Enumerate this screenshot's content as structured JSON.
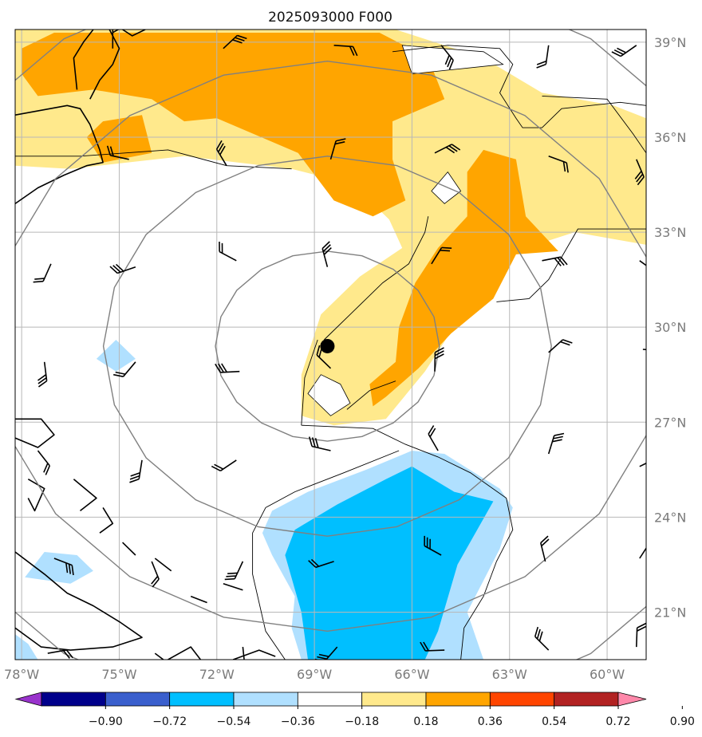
{
  "chart_data": {
    "type": "map",
    "title": "2025093000 F000",
    "projection": "equirectangular",
    "extent": {
      "lon_min": -78.2,
      "lon_max": -58.8,
      "lat_min": 19.5,
      "lat_max": 39.4
    },
    "x_ticks": [
      {
        "lon": -78,
        "label": "78°W"
      },
      {
        "lon": -75,
        "label": "75°W"
      },
      {
        "lon": -72,
        "label": "72°W"
      },
      {
        "lon": -69,
        "label": "69°W"
      },
      {
        "lon": -66,
        "label": "66°W"
      },
      {
        "lon": -63,
        "label": "63°W"
      },
      {
        "lon": -60,
        "label": "60°W"
      }
    ],
    "y_ticks": [
      {
        "lat": 39,
        "label": "39°N"
      },
      {
        "lat": 36,
        "label": "36°N"
      },
      {
        "lat": 33,
        "label": "33°N"
      },
      {
        "lat": 30,
        "label": "30°N"
      },
      {
        "lat": 27,
        "label": "27°N"
      },
      {
        "lat": 24,
        "label": "24°N"
      },
      {
        "lat": 21,
        "label": "21°N"
      }
    ],
    "storm_center": {
      "lon": -68.6,
      "lat": 29.4
    },
    "range_rings_lat_deg": [
      3,
      6,
      9,
      12
    ],
    "colorbar": {
      "levels": [
        -0.9,
        -0.72,
        -0.54,
        -0.36,
        -0.18,
        0.18,
        0.36,
        0.54,
        0.72,
        0.9
      ],
      "labels": [
        "−0.90",
        "−0.72",
        "−0.54",
        "−0.36",
        "−0.18",
        "0.18",
        "0.36",
        "0.54",
        "0.72",
        "0.90"
      ],
      "colors": [
        "#9933cc",
        "#00008b",
        "#3a5fcd",
        "#00bfff",
        "#b0e0ff",
        "#ffffff",
        "#ffe98c",
        "#ffa500",
        "#ff4500",
        "#b22222",
        "#ff88aa"
      ],
      "extend": "both"
    },
    "shaded_regions": [
      {
        "level": 0.18,
        "color": "#ffe98c",
        "polygon": [
          [
            -78.2,
            39.4
          ],
          [
            -66.5,
            39.4
          ],
          [
            -63.8,
            38.5
          ],
          [
            -62,
            37.4
          ],
          [
            -59.8,
            37
          ],
          [
            -58.8,
            36.6
          ],
          [
            -58.8,
            32.6
          ],
          [
            -61,
            33
          ],
          [
            -62.8,
            32.4
          ],
          [
            -64.2,
            30.8
          ],
          [
            -65.6,
            28.6
          ],
          [
            -66.8,
            27.1
          ],
          [
            -68.4,
            26.9
          ],
          [
            -69.4,
            27.2
          ],
          [
            -69.4,
            28.5
          ],
          [
            -68.8,
            30.4
          ],
          [
            -67.6,
            31.6
          ],
          [
            -66.3,
            32.5
          ],
          [
            -66.7,
            33.4
          ],
          [
            -67.8,
            34.5
          ],
          [
            -69.7,
            35
          ],
          [
            -73,
            35.4
          ],
          [
            -76.5,
            35
          ],
          [
            -78.2,
            35.1
          ]
        ]
      },
      {
        "level": 0.36,
        "color": "#ffa500",
        "polygon": [
          [
            -78,
            38.8
          ],
          [
            -77,
            39.3
          ],
          [
            -67,
            39.3
          ],
          [
            -65.5,
            38.5
          ],
          [
            -65,
            37.2
          ],
          [
            -66.6,
            36.5
          ],
          [
            -66.6,
            35.3
          ],
          [
            -66.2,
            34
          ],
          [
            -67.2,
            33.5
          ],
          [
            -68.4,
            34
          ],
          [
            -69.5,
            35.5
          ],
          [
            -72,
            36.6
          ],
          [
            -73,
            36.5
          ],
          [
            -74,
            37.2
          ],
          [
            -75.8,
            37.5
          ],
          [
            -77.5,
            37.3
          ],
          [
            -78,
            38
          ]
        ]
      },
      {
        "level": 0.36,
        "color": "#ffa500",
        "polygon": [
          [
            -75.5,
            36.5
          ],
          [
            -74.3,
            36.7
          ],
          [
            -74,
            35.5
          ],
          [
            -75.5,
            35.2
          ],
          [
            -76,
            36
          ]
        ]
      },
      {
        "level": 0.36,
        "color": "#ffa500",
        "polygon": [
          [
            -63.8,
            35.6
          ],
          [
            -62.8,
            35.3
          ],
          [
            -62.5,
            33.5
          ],
          [
            -61.5,
            32.4
          ],
          [
            -62.8,
            32.3
          ],
          [
            -63.5,
            30.9
          ],
          [
            -64.8,
            29.8
          ],
          [
            -65.8,
            28.7
          ],
          [
            -66.8,
            27.8
          ],
          [
            -67.2,
            27.5
          ],
          [
            -67.3,
            28.2
          ],
          [
            -66.5,
            28.9
          ],
          [
            -66.4,
            30
          ],
          [
            -65.9,
            31.4
          ],
          [
            -65.2,
            32.5
          ],
          [
            -64.3,
            33.5
          ],
          [
            -64.3,
            34.9
          ]
        ]
      },
      {
        "level": -0.18,
        "color": "#b0e0ff",
        "polygon": [
          [
            -69.2,
            24.8
          ],
          [
            -67.4,
            25.5
          ],
          [
            -66,
            26.1
          ],
          [
            -65,
            26
          ],
          [
            -63.3,
            24.9
          ],
          [
            -62.9,
            24.3
          ],
          [
            -63.3,
            23
          ],
          [
            -64.3,
            21
          ],
          [
            -63.8,
            19.5
          ],
          [
            -69.4,
            19.5
          ],
          [
            -69.7,
            20.5
          ],
          [
            -69.6,
            21.5
          ],
          [
            -70.3,
            22.8
          ],
          [
            -70.6,
            23.5
          ],
          [
            -70.3,
            24.2
          ]
        ]
      },
      {
        "level": -0.36,
        "color": "#00bfff",
        "polygon": [
          [
            -68.3,
            24.4
          ],
          [
            -66.8,
            25.2
          ],
          [
            -66,
            25.6
          ],
          [
            -64.7,
            24.8
          ],
          [
            -63.5,
            24.5
          ],
          [
            -64.6,
            22.5
          ],
          [
            -65.2,
            20.4
          ],
          [
            -65.6,
            19.5
          ],
          [
            -69.2,
            19.5
          ],
          [
            -69.4,
            21
          ],
          [
            -69.9,
            22.8
          ],
          [
            -69.6,
            23.6
          ]
        ]
      },
      {
        "level": -0.18,
        "color": "#b0e0ff",
        "polygon": [
          [
            -75.1,
            29.6
          ],
          [
            -74.5,
            29
          ],
          [
            -75.1,
            28.6
          ],
          [
            -75.7,
            29
          ]
        ]
      },
      {
        "level": -0.18,
        "color": "#b0e0ff",
        "polygon": [
          [
            -77.3,
            22.9
          ],
          [
            -76.3,
            22.8
          ],
          [
            -75.8,
            22.3
          ],
          [
            -76.5,
            21.9
          ],
          [
            -77.9,
            22.1
          ]
        ]
      },
      {
        "level": -0.18,
        "color": "#b0e0ff",
        "polygon": [
          [
            -78.2,
            20.3
          ],
          [
            -77.8,
            20
          ],
          [
            -77.5,
            19.5
          ],
          [
            -78.2,
            19.5
          ]
        ]
      }
    ],
    "clear_regions": [
      {
        "polygon": [
          [
            -68.8,
            28.5
          ],
          [
            -68.2,
            28.2
          ],
          [
            -67.9,
            27.6
          ],
          [
            -68.5,
            27.2
          ],
          [
            -69.2,
            27.9
          ]
        ]
      },
      {
        "polygon": [
          [
            -64.9,
            34.9
          ],
          [
            -64.5,
            34.3
          ],
          [
            -65,
            33.9
          ],
          [
            -65.4,
            34.3
          ]
        ]
      },
      {
        "polygon": [
          [
            -66.3,
            38.9
          ],
          [
            -63.8,
            38.7
          ],
          [
            -63.2,
            38.3
          ],
          [
            -66,
            38
          ]
        ]
      }
    ],
    "coastlines": [
      [
        [
          -78.2,
          36.7
        ],
        [
          -76.6,
          37
        ],
        [
          -76.2,
          36.9
        ],
        [
          -75.9,
          36.4
        ],
        [
          -75.6,
          35.6
        ],
        [
          -75.5,
          35.2
        ],
        [
          -76,
          35.1
        ],
        [
          -76.7,
          34.8
        ],
        [
          -77.5,
          34.4
        ],
        [
          -78.2,
          33.9
        ]
      ],
      [
        [
          -76.3,
          37.5
        ],
        [
          -76.4,
          38.5
        ],
        [
          -76.1,
          39
        ],
        [
          -75.8,
          39.4
        ]
      ],
      [
        [
          -75.9,
          37.2
        ],
        [
          -75.6,
          37.8
        ],
        [
          -75.2,
          38.3
        ],
        [
          -75,
          38.8
        ],
        [
          -75.3,
          39.4
        ]
      ],
      [
        [
          -74.9,
          39.4
        ],
        [
          -74.6,
          39.2
        ],
        [
          -74.2,
          39.4
        ]
      ],
      [
        [
          -78.2,
          27.1
        ],
        [
          -77.4,
          27.1
        ],
        [
          -77,
          26.6
        ],
        [
          -77.5,
          26.2
        ],
        [
          -78.2,
          26.5
        ]
      ],
      [
        [
          -77.8,
          25.2
        ],
        [
          -77.3,
          24.9
        ],
        [
          -77.6,
          24.2
        ],
        [
          -77.8,
          24.6
        ]
      ],
      [
        [
          -76.4,
          25.2
        ],
        [
          -75.7,
          24.6
        ],
        [
          -76.2,
          24.2
        ]
      ],
      [
        [
          -75.5,
          24.3
        ],
        [
          -75.2,
          23.8
        ],
        [
          -75.6,
          23.5
        ]
      ],
      [
        [
          -74.9,
          23.2
        ],
        [
          -74.5,
          22.8
        ]
      ],
      [
        [
          -73.9,
          22.7
        ],
        [
          -73.4,
          22.3
        ]
      ],
      [
        [
          -78.2,
          22.9
        ],
        [
          -77.3,
          22.2
        ],
        [
          -76.6,
          21.6
        ],
        [
          -75.8,
          21.2
        ],
        [
          -75,
          20.7
        ],
        [
          -74.3,
          20.2
        ],
        [
          -75.2,
          19.9
        ],
        [
          -76.5,
          19.8
        ],
        [
          -77.4,
          19.9
        ],
        [
          -78.2,
          20.5
        ]
      ],
      [
        [
          -73.5,
          19.5
        ],
        [
          -72.8,
          19.9
        ],
        [
          -72.5,
          19.5
        ]
      ],
      [
        [
          -71.5,
          19.5
        ],
        [
          -70.7,
          19.8
        ],
        [
          -70.2,
          19.6
        ]
      ],
      [
        [
          -72.8,
          21.5
        ],
        [
          -72.3,
          21.3
        ]
      ],
      [
        [
          -71.8,
          21.9
        ],
        [
          -71.2,
          21.7
        ]
      ]
    ],
    "contour_lines": [
      [
        [
          -69.4,
          26.9
        ],
        [
          -67.2,
          26.8
        ],
        [
          -66.2,
          26.3
        ],
        [
          -65.2,
          25.9
        ],
        [
          -64.2,
          25.4
        ],
        [
          -63.1,
          24.6
        ],
        [
          -62.9,
          23.6
        ],
        [
          -63.4,
          22.6
        ],
        [
          -63.8,
          21.5
        ],
        [
          -64.4,
          20.5
        ],
        [
          -64.5,
          19.5
        ]
      ],
      [
        [
          -68.7,
          29.6
        ],
        [
          -67.8,
          30.5
        ],
        [
          -66.9,
          31.4
        ],
        [
          -66.1,
          32
        ],
        [
          -65.6,
          33
        ],
        [
          -65.5,
          33.5
        ]
      ],
      [
        [
          -69.4,
          26.9
        ],
        [
          -69.3,
          28.4
        ],
        [
          -68.9,
          29.6
        ]
      ],
      [
        [
          -69.9,
          19.5
        ],
        [
          -70.5,
          20.4
        ],
        [
          -70.9,
          22.2
        ],
        [
          -70.9,
          23.5
        ],
        [
          -70.5,
          24.3
        ],
        [
          -69.6,
          24.8
        ],
        [
          -68.1,
          25.4
        ],
        [
          -66.4,
          26.1
        ]
      ],
      [
        [
          -68,
          27.4
        ],
        [
          -67.3,
          28
        ],
        [
          -66.5,
          28.3
        ]
      ],
      [
        [
          -78.2,
          35.4
        ],
        [
          -76.2,
          35.4
        ],
        [
          -73.5,
          35.6
        ],
        [
          -71.7,
          35.1
        ],
        [
          -69.7,
          35
        ]
      ],
      [
        [
          -66.6,
          38.7
        ],
        [
          -64.9,
          38.9
        ],
        [
          -63.3,
          38.8
        ],
        [
          -62.9,
          38.3
        ],
        [
          -63.3,
          37.4
        ],
        [
          -62.8,
          36.6
        ],
        [
          -62.6,
          36.3
        ],
        [
          -62,
          36.3
        ],
        [
          -61.4,
          36.9
        ],
        [
          -59.6,
          37.1
        ],
        [
          -58.8,
          37
        ]
      ],
      [
        [
          -58.8,
          33.1
        ],
        [
          -60.9,
          33.1
        ],
        [
          -61.8,
          31.5
        ],
        [
          -62.4,
          30.9
        ],
        [
          -63.4,
          30.8
        ]
      ],
      [
        [
          -62,
          37.3
        ],
        [
          -60,
          37.2
        ],
        [
          -59.2,
          36.1
        ],
        [
          -58.8,
          35.5
        ]
      ]
    ],
    "wind_barbs": [
      [
        -75.2,
        38.8
      ],
      [
        -71.8,
        38.8
      ],
      [
        -68.4,
        38.9
      ],
      [
        -65.1,
        38.9
      ],
      [
        -61.8,
        38.9
      ],
      [
        -59.1,
        38.9
      ],
      [
        -74.7,
        35.3
      ],
      [
        -71.7,
        35.1
      ],
      [
        -68.5,
        35.3
      ],
      [
        -65.3,
        35.5
      ],
      [
        -61.8,
        35.4
      ],
      [
        -59.1,
        35.3
      ],
      [
        -77.1,
        32.0
      ],
      [
        -74.5,
        31.9
      ],
      [
        -71.4,
        32.1
      ],
      [
        -68.6,
        31.9
      ],
      [
        -65.4,
        32.0
      ],
      [
        -62.0,
        32.1
      ],
      [
        -59.0,
        32.1
      ],
      [
        -77.3,
        28.9
      ],
      [
        -74.5,
        28.9
      ],
      [
        -71.3,
        28.6
      ],
      [
        -68.5,
        28.7
      ],
      [
        -65.3,
        28.6
      ],
      [
        -61.8,
        29.2
      ],
      [
        -58.9,
        29.3
      ],
      [
        -77.5,
        26.1
      ],
      [
        -74.3,
        25.8
      ],
      [
        -71.4,
        25.8
      ],
      [
        -68.5,
        26.1
      ],
      [
        -65.2,
        26.1
      ],
      [
        -61.8,
        26.0
      ],
      [
        -59.0,
        25.6
      ],
      [
        -77.0,
        22.7
      ],
      [
        -74.0,
        22.6
      ],
      [
        -71.2,
        22.6
      ],
      [
        -68.4,
        22.6
      ],
      [
        -65.1,
        22.8
      ],
      [
        -61.9,
        22.6
      ],
      [
        -59.0,
        22.7
      ],
      [
        -77.2,
        19.7
      ],
      [
        -73.9,
        19.7
      ],
      [
        -71.2,
        19.9
      ],
      [
        -68.3,
        19.9
      ],
      [
        -65.0,
        19.8
      ],
      [
        -61.8,
        19.8
      ],
      [
        -59.1,
        19.9
      ]
    ]
  }
}
